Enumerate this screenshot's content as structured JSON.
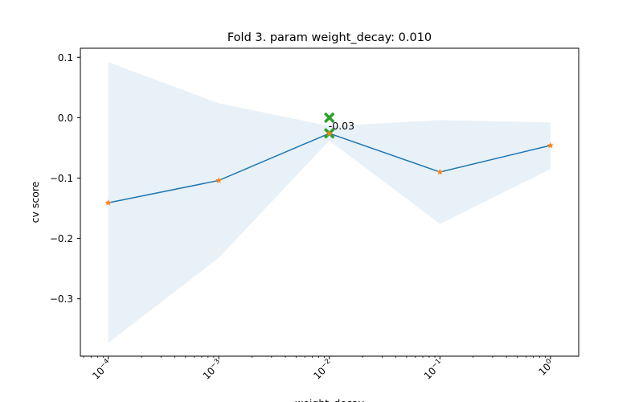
{
  "chart_data": {
    "type": "line",
    "title": "Fold 3. param weight_decay: 0.010",
    "xlabel": "weight_decay",
    "ylabel": "cv score",
    "xscale": "log",
    "x": [
      0.0001,
      0.001,
      0.01,
      0.1,
      1
    ],
    "x_tick_labels": [
      {
        "base": "10",
        "exp": "−4"
      },
      {
        "base": "10",
        "exp": "−3"
      },
      {
        "base": "10",
        "exp": "−2"
      },
      {
        "base": "10",
        "exp": "−1"
      },
      {
        "base": "10",
        "exp": "0"
      }
    ],
    "y_ticks": [
      0.1,
      0.0,
      -0.1,
      -0.2,
      -0.3
    ],
    "y_tick_labels": [
      "0.1",
      "0.0",
      "−0.1",
      "−0.2",
      "−0.3"
    ],
    "xlim": [
      5.6e-05,
      1.8
    ],
    "ylim": [
      -0.395,
      0.115
    ],
    "series": [
      {
        "values": [
          -0.141,
          -0.104,
          -0.026,
          -0.09,
          -0.046
        ],
        "band_upper": [
          0.092,
          0.024,
          -0.014,
          -0.004,
          -0.008
        ],
        "band_lower": [
          -0.373,
          -0.232,
          -0.038,
          -0.176,
          -0.085
        ],
        "line_color": "#1f77b4",
        "band_color": "#1f77b4",
        "marker_color": "#ff7f0e",
        "marker": "star"
      }
    ],
    "highlights": [
      {
        "x": 0.01,
        "y": 0.0,
        "marker": "x",
        "color": "#2ca02c"
      },
      {
        "x": 0.01,
        "y": -0.026,
        "marker": "x",
        "color": "#2ca02c"
      }
    ],
    "annotation": {
      "text": "-0.03",
      "x": 0.01,
      "y": -0.026
    },
    "grid": false,
    "legend": "none"
  }
}
